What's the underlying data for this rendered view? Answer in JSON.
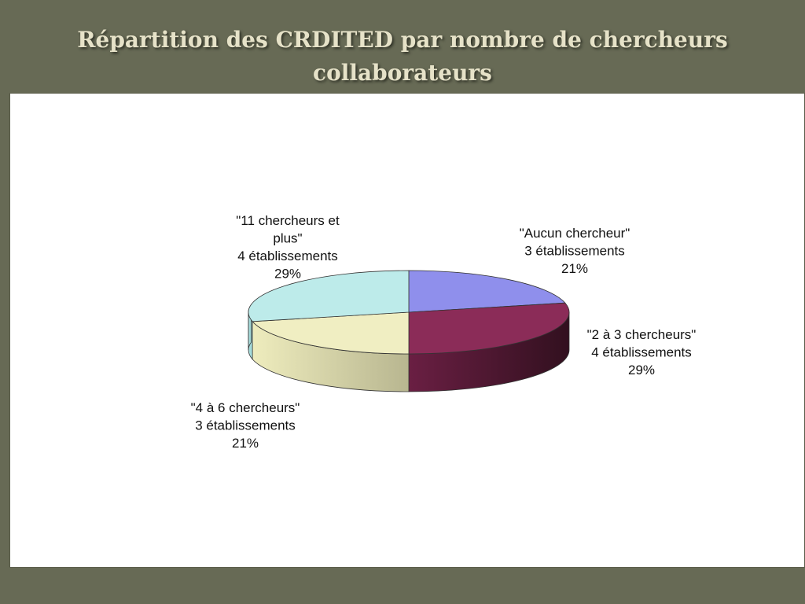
{
  "slide": {
    "title_line1": "Répartition des CRDITED  par nombre de chercheurs",
    "title_line2": "collaborateurs"
  },
  "colors": {
    "background": "#676a55",
    "panel": "#ffffff",
    "title_text": "#e6e2c8"
  },
  "chart_data": {
    "type": "pie",
    "style": "3d",
    "title": "",
    "categories": [
      "\"Aucun chercheur\"",
      "\"2 à 3 chercheurs\"",
      "\"4 à 6 chercheurs\"",
      "\"11 chercheurs et plus\""
    ],
    "values": [
      3,
      4,
      3,
      4
    ],
    "unit": "établissements",
    "percents": [
      21,
      29,
      21,
      29
    ],
    "colors": [
      "#8f8fec",
      "#8b2c58",
      "#f0eec2",
      "#bdebea"
    ],
    "labels": [
      {
        "lines": [
          "\"Aucun chercheur\"",
          "3 établissements",
          "21%"
        ]
      },
      {
        "lines": [
          "\"2 à 3 chercheurs\"",
          "4 établissements",
          "29%"
        ]
      },
      {
        "lines": [
          "\"4 à 6 chercheurs\"",
          "3 établissements",
          "21%"
        ]
      },
      {
        "lines": [
          "\"11 chercheurs et",
          "plus\"",
          "4 établissements",
          "29%"
        ]
      }
    ]
  }
}
